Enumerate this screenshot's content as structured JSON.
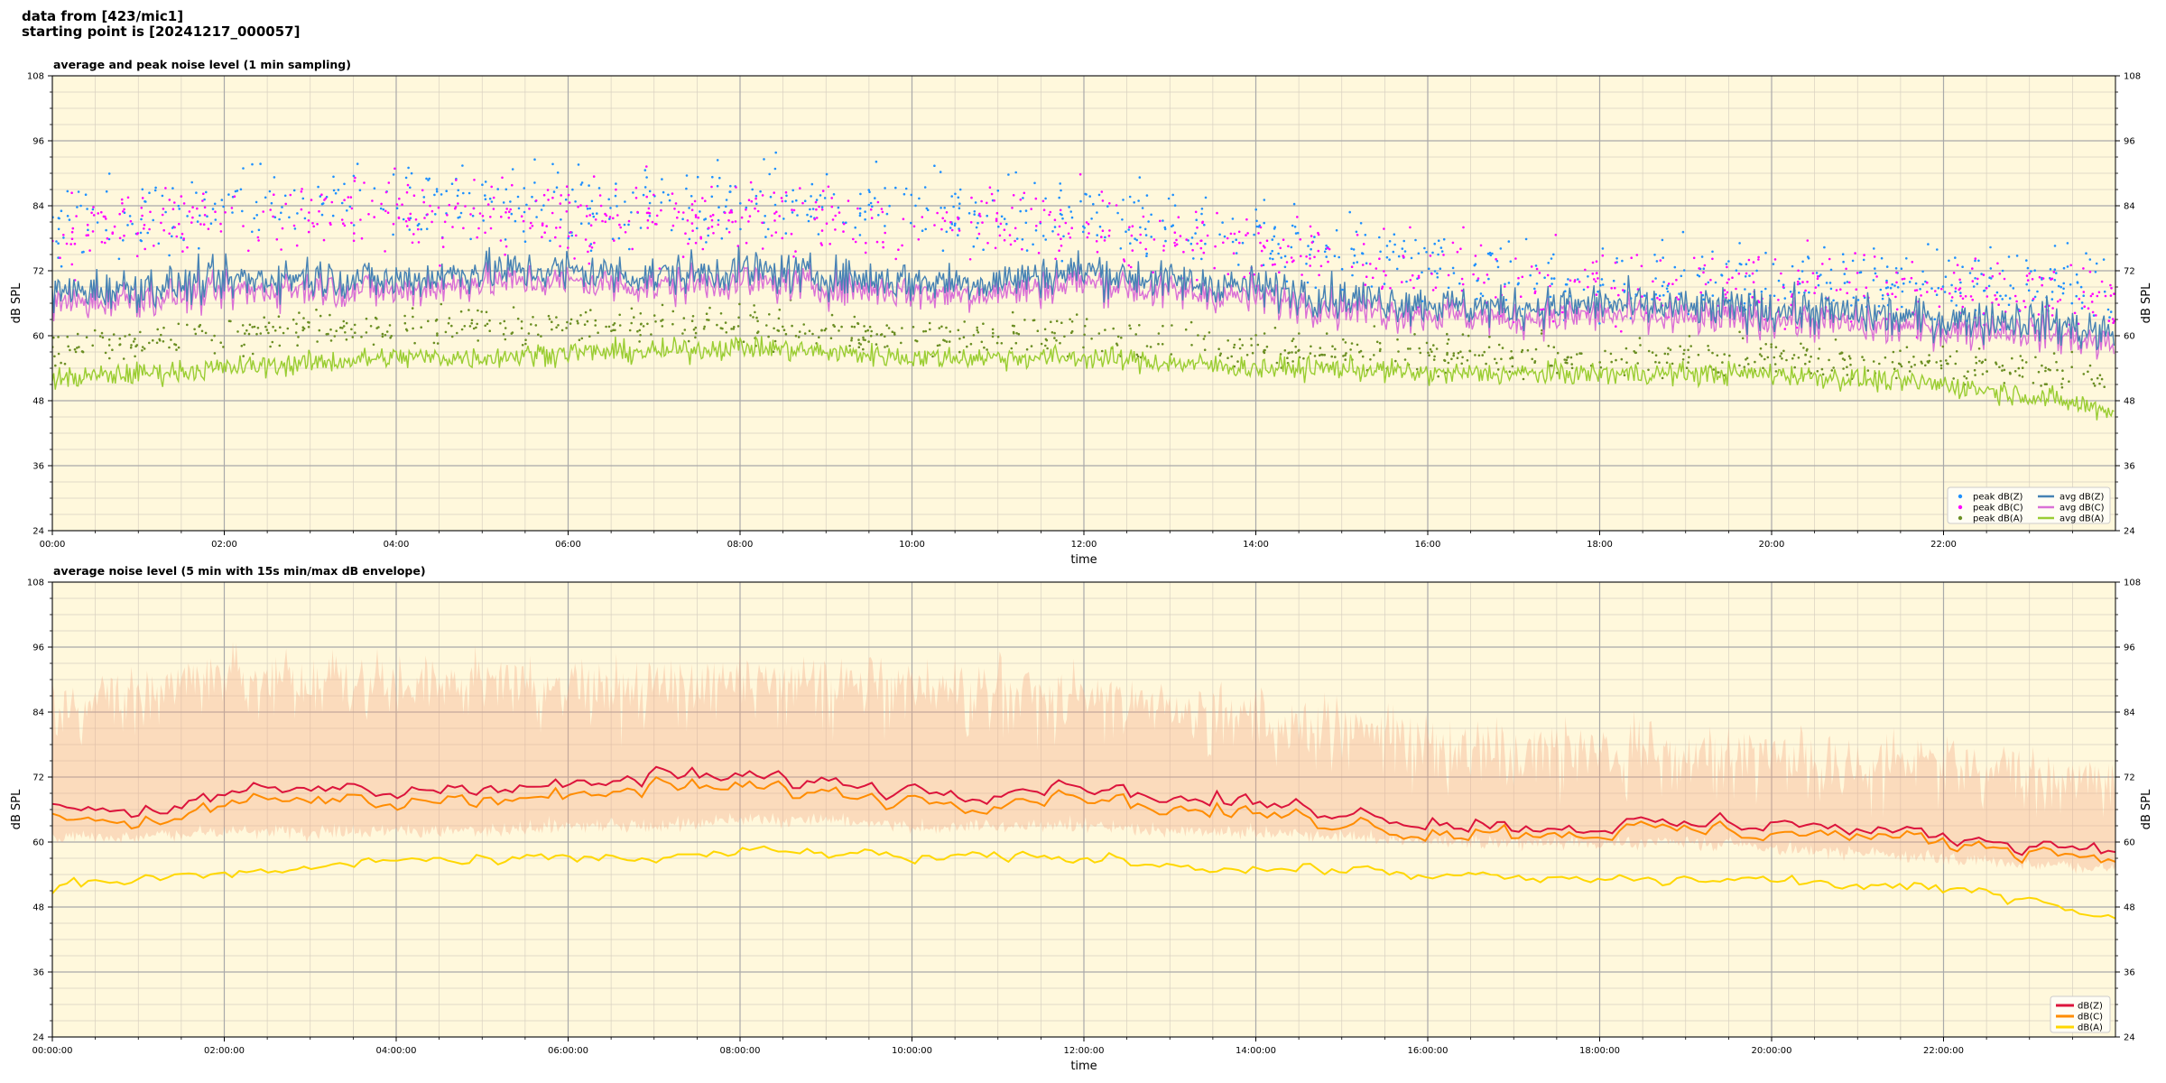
{
  "header": {
    "line1": "data from [423/mic1]",
    "line2": "starting point is [20241217_000057]"
  },
  "colors": {
    "plot_bg": "#fff8dc",
    "grid_major": "#a9a9a9",
    "grid_minor": "#d8d0c0",
    "avg_z": "#4682b4",
    "avg_c": "#da70d6",
    "avg_a": "#9acd32",
    "peak_z": "#1e90ff",
    "peak_c": "#ff00ff",
    "peak_a": "#6b8e23",
    "dbz": "#dc143c",
    "dbc": "#ff8c00",
    "dba": "#ffd700",
    "envelope": "#f4a582"
  },
  "chart_data": [
    {
      "type": "line",
      "title": "average and peak noise level (1 min sampling)",
      "xlabel": "time",
      "ylabel": "dB SPL",
      "ylim": [
        24,
        108
      ],
      "xlim": [
        0,
        24
      ],
      "yticks": [
        "24",
        "36",
        "48",
        "60",
        "72",
        "84",
        "96",
        "108"
      ],
      "xticks": [
        "00:00",
        "02:00",
        "04:00",
        "06:00",
        "08:00",
        "10:00",
        "12:00",
        "14:00",
        "16:00",
        "18:00",
        "20:00",
        "22:00"
      ],
      "grid": true,
      "legend_position": "lower-right",
      "legend": [
        "peak dB(Z)",
        "peak dB(C)",
        "peak dB(A)",
        "avg dB(Z)",
        "avg dB(C)",
        "avg dB(A)"
      ],
      "series": [
        {
          "name": "avg dB(Z)",
          "kind": "line",
          "x": [
            0,
            1,
            2,
            3,
            4,
            5,
            6,
            7,
            8,
            9,
            10,
            11,
            12,
            13,
            14,
            15,
            16,
            17,
            18,
            19,
            20,
            21,
            22,
            23,
            24
          ],
          "values": [
            68,
            69,
            70,
            71,
            70,
            72,
            72,
            71,
            72,
            71,
            70,
            70,
            72,
            70,
            69,
            67,
            66,
            65,
            66,
            65,
            65,
            64,
            63,
            63,
            60
          ]
        },
        {
          "name": "avg dB(C)",
          "kind": "line",
          "x": [
            0,
            1,
            2,
            3,
            4,
            5,
            6,
            7,
            8,
            9,
            10,
            11,
            12,
            13,
            14,
            15,
            16,
            17,
            18,
            19,
            20,
            21,
            22,
            23,
            24
          ],
          "values": [
            66,
            67,
            68,
            69,
            68,
            70,
            70,
            69,
            70,
            69,
            68,
            68,
            70,
            68,
            67,
            65,
            64,
            63,
            64,
            63,
            63,
            62,
            61,
            61,
            58
          ]
        },
        {
          "name": "avg dB(A)",
          "kind": "line",
          "x": [
            0,
            1,
            2,
            3,
            4,
            5,
            6,
            7,
            8,
            9,
            10,
            11,
            12,
            13,
            14,
            15,
            16,
            17,
            18,
            19,
            20,
            21,
            22,
            23,
            24
          ],
          "values": [
            52,
            53,
            54,
            55,
            56,
            56,
            57,
            57,
            58,
            57,
            56,
            56,
            56,
            55,
            54,
            54,
            53,
            53,
            53,
            53,
            53,
            52,
            51,
            49,
            46
          ]
        },
        {
          "name": "peak dB(Z)",
          "kind": "scatter",
          "x": [
            0,
            1,
            2,
            3,
            4,
            5,
            6,
            7,
            8,
            9,
            10,
            11,
            12,
            13,
            14,
            15,
            16,
            17,
            18,
            19,
            20,
            21,
            22,
            23,
            24
          ],
          "values": [
            80,
            82,
            84,
            85,
            84,
            84,
            84,
            83,
            85,
            84,
            83,
            82,
            82,
            80,
            78,
            76,
            73,
            71,
            71,
            71,
            71,
            71,
            70,
            70,
            68
          ]
        },
        {
          "name": "peak dB(C)",
          "kind": "scatter",
          "x": [
            0,
            1,
            2,
            3,
            4,
            5,
            6,
            7,
            8,
            9,
            10,
            11,
            12,
            13,
            14,
            15,
            16,
            17,
            18,
            19,
            20,
            21,
            22,
            23,
            24
          ],
          "values": [
            78,
            80,
            82,
            83,
            82,
            82,
            82,
            81,
            83,
            82,
            81,
            80,
            80,
            78,
            76,
            74,
            71,
            69,
            69,
            69,
            69,
            69,
            68,
            68,
            66
          ]
        },
        {
          "name": "peak dB(A)",
          "kind": "scatter",
          "x": [
            0,
            1,
            2,
            3,
            4,
            5,
            6,
            7,
            8,
            9,
            10,
            11,
            12,
            13,
            14,
            15,
            16,
            17,
            18,
            19,
            20,
            21,
            22,
            23,
            24
          ],
          "values": [
            58,
            59,
            60,
            61,
            61,
            62,
            62,
            62,
            62,
            61,
            60,
            60,
            60,
            59,
            58,
            57,
            57,
            56,
            56,
            56,
            56,
            55,
            55,
            54,
            52
          ]
        }
      ]
    },
    {
      "type": "line",
      "title": "average noise level (5 min with 15s min/max dB envelope)",
      "xlabel": "time",
      "ylabel": "dB SPL",
      "ylim": [
        24,
        108
      ],
      "xlim": [
        0,
        24
      ],
      "yticks": [
        "24",
        "36",
        "48",
        "60",
        "72",
        "84",
        "96",
        "108"
      ],
      "xticks": [
        "00:00:00",
        "02:00:00",
        "04:00:00",
        "06:00:00",
        "08:00:00",
        "10:00:00",
        "12:00:00",
        "14:00:00",
        "16:00:00",
        "18:00:00",
        "20:00:00",
        "22:00:00"
      ],
      "grid": true,
      "legend_position": "lower-right",
      "legend": [
        "dB(Z)",
        "dB(C)",
        "dB(A)"
      ],
      "series": [
        {
          "name": "dB(Z)",
          "kind": "line",
          "x": [
            0,
            1,
            2,
            3,
            4,
            5,
            6,
            7,
            8,
            9,
            10,
            11,
            12,
            13,
            14,
            15,
            16,
            17,
            18,
            19,
            20,
            21,
            22,
            23,
            24
          ],
          "values": [
            67,
            66,
            68,
            70,
            69,
            71,
            70,
            72,
            72,
            71,
            70,
            70,
            71,
            68,
            67,
            66,
            64,
            63,
            63,
            63,
            64,
            62,
            61,
            60,
            59
          ]
        },
        {
          "name": "dB(C)",
          "kind": "line",
          "x": [
            0,
            1,
            2,
            3,
            4,
            5,
            6,
            7,
            8,
            9,
            10,
            11,
            12,
            13,
            14,
            15,
            16,
            17,
            18,
            19,
            20,
            21,
            22,
            23,
            24
          ],
          "values": [
            65,
            64,
            66,
            68,
            67,
            69,
            68,
            70,
            70,
            69,
            68,
            68,
            69,
            66,
            65,
            64,
            62,
            62,
            62,
            62,
            62,
            61,
            60,
            59,
            57
          ]
        },
        {
          "name": "dB(A)",
          "kind": "line",
          "x": [
            0,
            1,
            2,
            3,
            4,
            5,
            6,
            7,
            8,
            9,
            10,
            11,
            12,
            13,
            14,
            15,
            16,
            17,
            18,
            19,
            20,
            21,
            22,
            23,
            24
          ],
          "values": [
            52,
            53,
            54,
            55,
            57,
            56,
            57,
            57,
            58,
            58,
            57,
            57,
            57,
            56,
            55,
            55,
            54,
            53,
            53,
            53,
            53,
            52,
            51,
            50,
            46
          ]
        }
      ],
      "envelope": {
        "name": "15s min/max dB envelope",
        "x": [
          0,
          1,
          2,
          3,
          4,
          5,
          6,
          7,
          8,
          9,
          10,
          11,
          12,
          13,
          14,
          15,
          16,
          17,
          18,
          19,
          20,
          21,
          22,
          23,
          24
        ],
        "min": [
          61,
          61,
          62,
          62,
          62,
          62,
          63,
          63,
          64,
          64,
          63,
          63,
          63,
          62,
          62,
          61,
          60,
          60,
          60,
          60,
          59,
          58,
          57,
          56,
          55
        ],
        "max": [
          86,
          90,
          92,
          92,
          92,
          91,
          90,
          91,
          92,
          91,
          90,
          89,
          89,
          86,
          84,
          82,
          80,
          78,
          78,
          78,
          78,
          76,
          76,
          75,
          72
        ]
      }
    }
  ]
}
